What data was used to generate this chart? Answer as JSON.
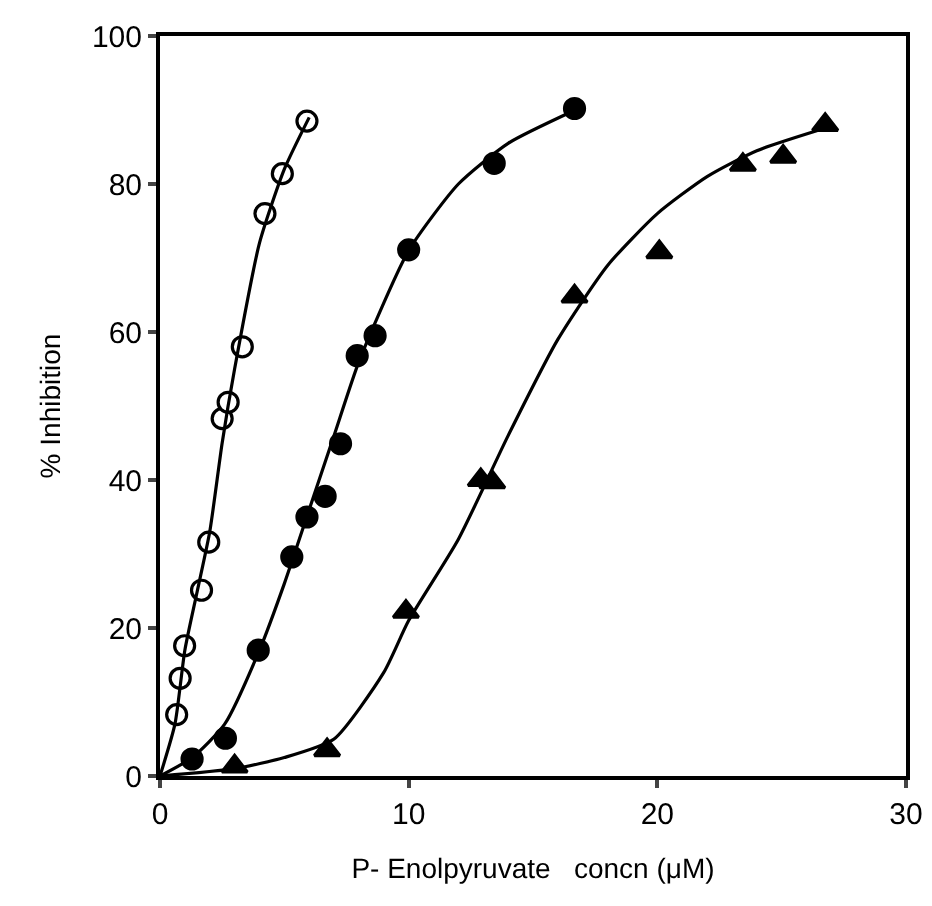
{
  "chart_data": {
    "type": "scatter",
    "xlabel": "P- Enolpyruvate   concn (μM)",
    "ylabel": "% Inhibition",
    "xlim": [
      0,
      30
    ],
    "xticks": [
      0,
      10,
      20,
      30
    ],
    "ylim": [
      0,
      100
    ],
    "yticks": [
      0,
      20,
      40,
      60,
      80,
      100
    ],
    "series": [
      {
        "type": "scatter",
        "marker": "circle",
        "color": "#ffffff",
        "x": [
          0.67,
          0.81,
          0.99,
          1.67,
          1.96,
          2.5,
          2.74,
          3.31,
          4.22,
          4.92,
          5.91
        ],
        "values": [
          8.3,
          13.2,
          17.6,
          25.1,
          31.6,
          48.3,
          50.5,
          58.0,
          76.0,
          81.4,
          88.5
        ]
      },
      {
        "type": "scatter",
        "marker": "circle",
        "color": "#000000",
        "x": [
          1.29,
          2.63,
          3.95,
          5.3,
          5.91,
          6.64,
          7.26,
          7.93,
          8.65,
          10.0,
          13.44,
          16.67
        ],
        "values": [
          2.3,
          5.1,
          17.0,
          29.6,
          35.0,
          37.8,
          44.9,
          56.8,
          59.5,
          71.1,
          82.8,
          90.2
        ]
      },
      {
        "type": "scatter",
        "marker": "triangle",
        "color": "#000000",
        "x": [
          3.0,
          6.72,
          9.89,
          12.9,
          13.36,
          16.67,
          20.08,
          23.44,
          25.06,
          26.75
        ],
        "values": [
          1.3,
          3.5,
          22.2,
          40.0,
          39.7,
          64.8,
          70.8,
          82.6,
          83.7,
          88.0
        ]
      },
      {
        "type": "line",
        "marker": "none",
        "line_style": "solid",
        "color": "#000000",
        "x": [
          0,
          0.6,
          1,
          1.5,
          2,
          2.5,
          3,
          4,
          5,
          6
        ],
        "values": [
          0,
          7,
          17,
          25,
          33,
          45,
          55,
          72,
          82,
          89
        ]
      },
      {
        "type": "line",
        "marker": "none",
        "line_style": "solid",
        "color": "#000000",
        "x": [
          0,
          1.3,
          2.6,
          4,
          5,
          6,
          7,
          8,
          10,
          12,
          14,
          16.7
        ],
        "values": [
          0,
          2.5,
          7,
          17,
          26,
          36,
          46,
          56,
          71,
          80,
          85.5,
          90
        ]
      },
      {
        "type": "line",
        "marker": "none",
        "line_style": "solid",
        "color": "#000000",
        "x": [
          0,
          3,
          5,
          7,
          9,
          10,
          12,
          14,
          16,
          18,
          20,
          22,
          24,
          26.7
        ],
        "values": [
          0,
          1,
          2.5,
          5,
          14,
          21,
          32,
          46,
          59,
          69,
          76,
          81,
          84.5,
          87.5
        ]
      }
    ]
  }
}
